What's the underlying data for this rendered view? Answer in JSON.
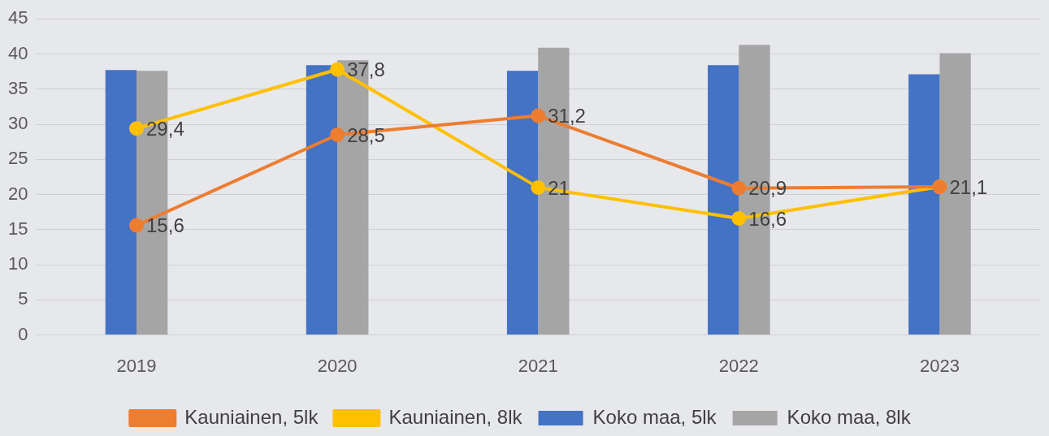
{
  "chart_data": {
    "type": "bar",
    "categories": [
      "2019",
      "2020",
      "2021",
      "2022",
      "2023"
    ],
    "series": [
      {
        "name": "Koko maa, 5lk",
        "color": "#4472c4",
        "values": [
          37.7,
          38.4,
          37.6,
          38.4,
          37.1
        ]
      },
      {
        "name": "Koko maa, 8lk",
        "color": "#a5a5a5",
        "values": [
          37.6,
          39.1,
          40.9,
          41.3,
          40.1
        ]
      },
      {
        "name": "Kauniainen, 5lk",
        "type": "line",
        "color": "#ed7d31",
        "values": [
          15.6,
          28.5,
          31.2,
          20.9,
          21.1
        ],
        "value_labels": [
          "15,6",
          "28,5",
          "31,2",
          "20,9",
          null
        ]
      },
      {
        "name": "Kauniainen, 8lk",
        "type": "line",
        "color": "#ffc000",
        "values": [
          29.4,
          37.8,
          21,
          16.6,
          21.1
        ],
        "value_labels": [
          "29,4",
          "37,8",
          "21",
          "16,6",
          "21,1"
        ]
      }
    ],
    "ylim": [
      0,
      45
    ],
    "yticks": [
      0,
      5,
      10,
      15,
      20,
      25,
      30,
      35,
      40,
      45
    ],
    "grid": "y",
    "legend": "bottom",
    "marker": "circle"
  }
}
